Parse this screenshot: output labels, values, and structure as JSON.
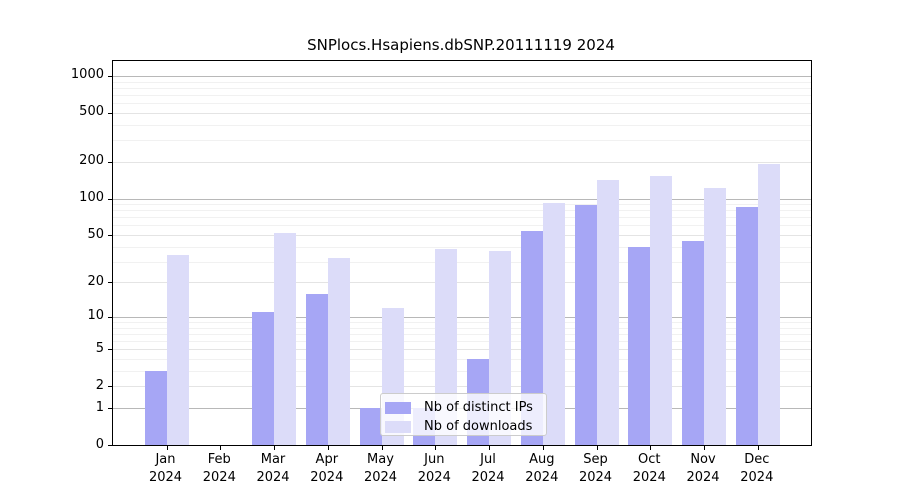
{
  "chart_data": {
    "type": "bar",
    "title": "SNPlocs.Hsapiens.dbSNP.20111119 2024",
    "categories": [
      "Jan 2024",
      "Feb 2024",
      "Mar 2024",
      "Apr 2024",
      "May 2024",
      "Jun 2024",
      "Jul 2024",
      "Aug 2024",
      "Sep 2024",
      "Oct 2024",
      "Nov 2024",
      "Dec 2024"
    ],
    "series": [
      {
        "name": "Nb of distinct IPs",
        "color": "#a6a6f5",
        "values": [
          3,
          0,
          11,
          16,
          1,
          1,
          4,
          54,
          88,
          40,
          45,
          85
        ]
      },
      {
        "name": "Nb of downloads",
        "color": "#dcdcf9",
        "values": [
          34,
          0,
          52,
          32,
          12,
          38,
          37,
          92,
          141,
          154,
          122,
          191
        ]
      }
    ],
    "xlabel": "",
    "ylabel": "",
    "y_scale": "log10(1+x)",
    "ylim": [
      0,
      1300
    ],
    "y_ticks": [
      0,
      1,
      2,
      5,
      10,
      20,
      50,
      100,
      200,
      500,
      1000
    ],
    "grid": {
      "major": [
        1,
        10,
        100,
        1000
      ],
      "labeled": [
        2,
        5,
        20,
        50,
        200,
        500
      ],
      "minor": [
        3,
        4,
        6,
        7,
        8,
        9,
        30,
        40,
        60,
        70,
        80,
        90,
        300,
        400,
        600,
        700,
        800,
        900
      ]
    },
    "legend_position": "lower center",
    "grid_on": true
  },
  "colors": {
    "major_grid": "#b8b8b8",
    "labeled_grid": "#e4e4e4",
    "minor_grid": "#f1f1f1",
    "axis": "#000000",
    "background": "#ffffff"
  }
}
